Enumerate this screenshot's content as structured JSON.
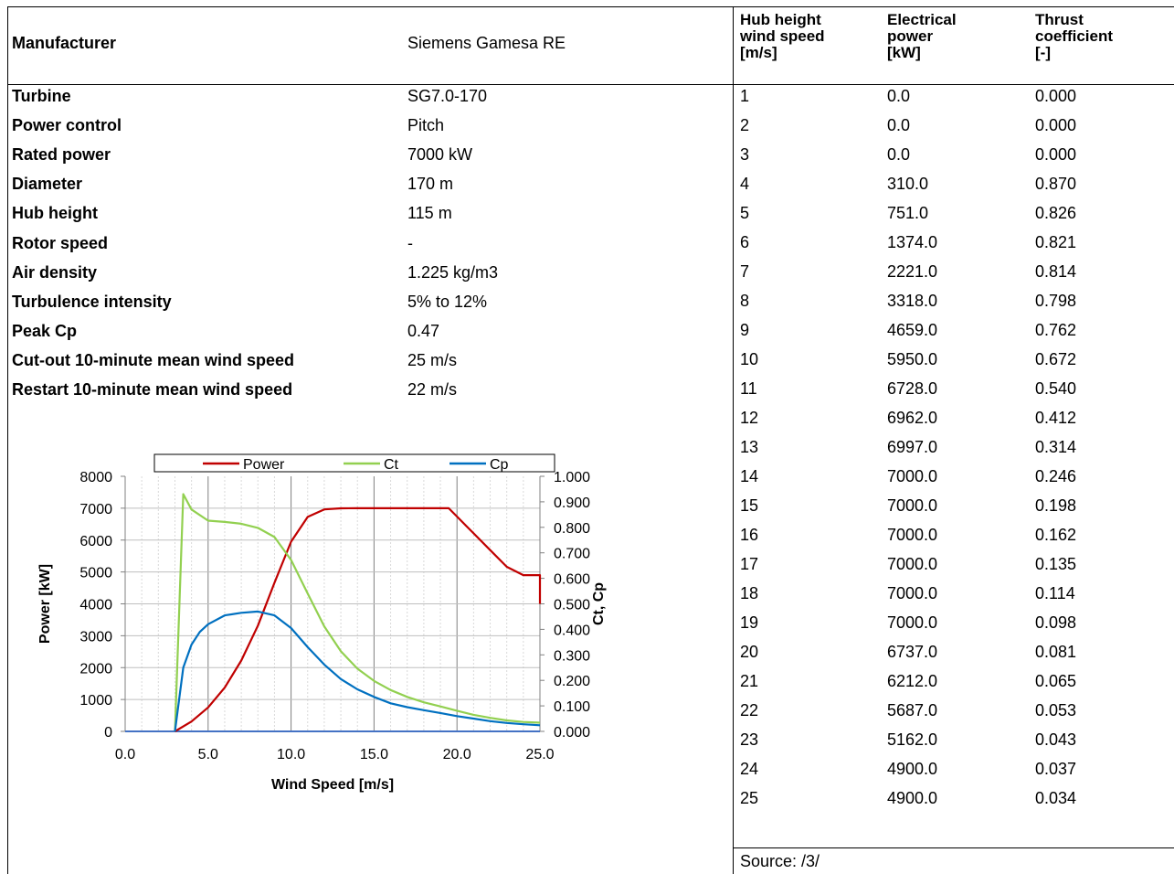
{
  "header": {
    "manufacturer_label": "Manufacturer",
    "manufacturer_value": "Siemens Gamesa RE",
    "col_wind": [
      "Hub height",
      "wind speed",
      "[m/s]"
    ],
    "col_power": [
      "Electrical",
      "power",
      "[kW]"
    ],
    "col_thrust": [
      "Thrust",
      "coefficient",
      "[-]"
    ]
  },
  "specs": [
    {
      "label": "Turbine",
      "value": "SG7.0-170"
    },
    {
      "label": "Power control",
      "value": "Pitch"
    },
    {
      "label": "Rated power",
      "value": "7000 kW"
    },
    {
      "label": "Diameter",
      "value": "170 m"
    },
    {
      "label": "Hub height",
      "value": "115 m"
    },
    {
      "label": "Rotor speed",
      "value": "-"
    },
    {
      "label": "Air density",
      "value": "1.225 kg/m3"
    },
    {
      "label": "Turbulence intensity",
      "value": "5% to 12%"
    },
    {
      "label": "Peak Cp",
      "value": "0.47"
    },
    {
      "label": "Cut-out 10-minute mean wind speed",
      "value": "25 m/s"
    },
    {
      "label": "Restart 10-minute mean wind speed",
      "value": "22 m/s"
    }
  ],
  "table": {
    "wind": [
      "1",
      "2",
      "3",
      "4",
      "5",
      "6",
      "7",
      "8",
      "9",
      "10",
      "11",
      "12",
      "13",
      "14",
      "15",
      "16",
      "17",
      "18",
      "19",
      "20",
      "21",
      "22",
      "23",
      "24",
      "25"
    ],
    "power": [
      "0.0",
      "0.0",
      "0.0",
      "310.0",
      "751.0",
      "1374.0",
      "2221.0",
      "3318.0",
      "4659.0",
      "5950.0",
      "6728.0",
      "6962.0",
      "6997.0",
      "7000.0",
      "7000.0",
      "7000.0",
      "7000.0",
      "7000.0",
      "7000.0",
      "6737.0",
      "6212.0",
      "5687.0",
      "5162.0",
      "4900.0",
      "4900.0"
    ],
    "thrust": [
      "0.000",
      "0.000",
      "0.000",
      "0.870",
      "0.826",
      "0.821",
      "0.814",
      "0.798",
      "0.762",
      "0.672",
      "0.540",
      "0.412",
      "0.314",
      "0.246",
      "0.198",
      "0.162",
      "0.135",
      "0.114",
      "0.098",
      "0.081",
      "0.065",
      "0.053",
      "0.043",
      "0.037",
      "0.034"
    ]
  },
  "source": "Source: /3/",
  "chart_data": {
    "type": "line",
    "xlabel": "Wind Speed [m/s]",
    "ylabel": "Power [kW]",
    "y2label": "Ct, Cp",
    "xlim": [
      0,
      25
    ],
    "ylim": [
      0,
      8000
    ],
    "y2lim": [
      0,
      1
    ],
    "xticks": [
      "0.0",
      "5.0",
      "10.0",
      "15.0",
      "20.0",
      "25.0"
    ],
    "yticks": [
      "0",
      "1000",
      "2000",
      "3000",
      "4000",
      "5000",
      "6000",
      "7000",
      "8000"
    ],
    "y2ticks": [
      "0.000",
      "0.100",
      "0.200",
      "0.300",
      "0.400",
      "0.500",
      "0.600",
      "0.700",
      "0.800",
      "0.900",
      "1.000"
    ],
    "legend_position": "top",
    "grid": true,
    "series": [
      {
        "name": "Power",
        "axis": "left",
        "color": "#c00000",
        "x": [
          3,
          4,
          5,
          6,
          7,
          8,
          9,
          10,
          11,
          12,
          13,
          14,
          15,
          16,
          17,
          18,
          19,
          19.5,
          20,
          21,
          22,
          23,
          24,
          25,
          25
        ],
        "y": [
          0,
          310,
          751,
          1374,
          2221,
          3318,
          4659,
          5950,
          6728,
          6962,
          6997,
          7000,
          7000,
          7000,
          7000,
          7000,
          7000,
          7000,
          6737,
          6212,
          5687,
          5162,
          4900,
          4900,
          4000
        ]
      },
      {
        "name": "Ct",
        "axis": "right",
        "color": "#92d050",
        "x": [
          3,
          3.5,
          4,
          5,
          6,
          7,
          8,
          9,
          10,
          11,
          12,
          13,
          14,
          15,
          16,
          17,
          18,
          19,
          20,
          21,
          22,
          23,
          24,
          25
        ],
        "y": [
          0,
          0.93,
          0.87,
          0.826,
          0.821,
          0.814,
          0.798,
          0.762,
          0.672,
          0.54,
          0.412,
          0.314,
          0.246,
          0.198,
          0.162,
          0.135,
          0.114,
          0.098,
          0.081,
          0.065,
          0.053,
          0.043,
          0.037,
          0.034
        ]
      },
      {
        "name": "Cp",
        "axis": "right",
        "color": "#0070c0",
        "x": [
          3,
          3.5,
          4,
          4.5,
          5,
          6,
          7,
          8,
          9,
          10,
          11,
          12,
          13,
          14,
          15,
          16,
          17,
          18,
          19,
          20,
          21,
          22,
          23,
          24,
          25
        ],
        "y": [
          0,
          0.25,
          0.34,
          0.39,
          0.42,
          0.455,
          0.465,
          0.47,
          0.455,
          0.405,
          0.33,
          0.262,
          0.205,
          0.165,
          0.135,
          0.11,
          0.095,
          0.083,
          0.072,
          0.06,
          0.05,
          0.04,
          0.033,
          0.028,
          0.024
        ]
      }
    ]
  }
}
